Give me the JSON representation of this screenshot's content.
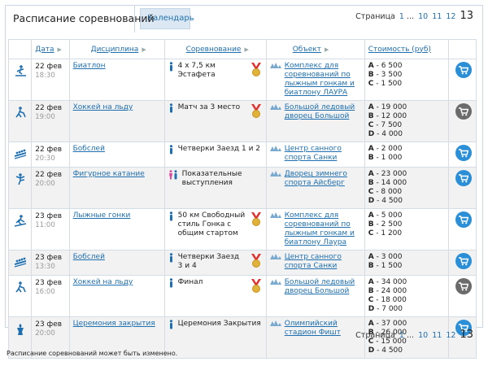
{
  "tabs": {
    "schedule": "Расписание соревнований",
    "calendar": "Календарь"
  },
  "pager": {
    "label": "Страница",
    "ellipsis": "...",
    "pages": [
      "1",
      "10",
      "11",
      "12"
    ],
    "current": "13"
  },
  "table": {
    "headers": {
      "date": "Дата",
      "discipline": "Дисциплина",
      "event": "Соревнование",
      "venue": "Объект",
      "price": "Стоимость (руб)"
    },
    "rows": [
      {
        "date": "22 фев",
        "time": "18:30",
        "discipline": "Биатлон",
        "event": "4 x 7,5 км Эстафета",
        "medal": true,
        "venue": "Комплекс для соревнований по лыжным гонкам и биатлону ЛАУРА",
        "prices": [
          [
            "A",
            "6 500"
          ],
          [
            "B",
            "3 500"
          ],
          [
            "C",
            "1 500"
          ]
        ],
        "cart": "blue",
        "sport_icon": "biathlon-icon"
      },
      {
        "date": "22 фев",
        "time": "19:00",
        "discipline": "Хоккей на льду",
        "event": "Матч за 3 место",
        "medal": true,
        "venue": "Большой ледовый дворец Большой",
        "prices": [
          [
            "A",
            "19 000"
          ],
          [
            "B",
            "12 000"
          ],
          [
            "C",
            "7 500"
          ],
          [
            "D",
            "4 000"
          ]
        ],
        "cart": "grey",
        "sport_icon": "hockey-icon"
      },
      {
        "date": "22 фев",
        "time": "20:30",
        "discipline": "Бобслей",
        "event": "Четверки Заезд 1 и 2",
        "medal": false,
        "venue": "Центр санного спорта Санки",
        "prices": [
          [
            "A",
            "2 000"
          ],
          [
            "B",
            "1 000"
          ]
        ],
        "cart": "blue",
        "sport_icon": "bobsleigh-icon"
      },
      {
        "date": "22 фев",
        "time": "20:00",
        "discipline": "Фигурное катание",
        "event": "Показательные выступления",
        "medal": false,
        "venue": "Дворец зимнего спорта Айсберг",
        "prices": [
          [
            "A",
            "23 000"
          ],
          [
            "B",
            "14 000"
          ],
          [
            "C",
            "8 000"
          ],
          [
            "D",
            "4 500"
          ]
        ],
        "cart": "blue",
        "sport_icon": "figure-skating-icon"
      },
      {
        "date": "23 фев",
        "time": "11:00",
        "discipline": "Лыжные гонки",
        "event": "50 км Свободный стиль Гонка с общим стартом",
        "medal": true,
        "venue": "Комплекс для соревнований по лыжным гонкам и биатлону Лаура",
        "prices": [
          [
            "A",
            "5 000"
          ],
          [
            "B",
            "2 500"
          ],
          [
            "C",
            "1 200"
          ]
        ],
        "cart": "blue",
        "sport_icon": "cross-country-icon"
      },
      {
        "date": "23 фев",
        "time": "13:30",
        "discipline": "Бобслей",
        "event": "Четверки Заезд 3 и 4",
        "medal": true,
        "venue": "Центр санного спорта Санки",
        "prices": [
          [
            "A",
            "3 000"
          ],
          [
            "B",
            "1 500"
          ]
        ],
        "cart": "blue",
        "sport_icon": "bobsleigh-icon"
      },
      {
        "date": "23 фев",
        "time": "16:00",
        "discipline": "Хоккей на льду",
        "event": "Финал",
        "medal": true,
        "venue": "Большой ледовый дворец Большой",
        "prices": [
          [
            "A",
            "34 000"
          ],
          [
            "B",
            "24 000"
          ],
          [
            "C",
            "18 000"
          ],
          [
            "D",
            "7 000"
          ]
        ],
        "cart": "grey",
        "sport_icon": "hockey-icon"
      },
      {
        "date": "23 фев",
        "time": "20:00",
        "discipline": "Церемония закрытия",
        "event": "Церемония Закрытия",
        "medal": false,
        "venue": "Олимпийский стадион Фишт",
        "prices": [
          [
            "A",
            "37 000"
          ],
          [
            "B",
            "26 000"
          ],
          [
            "C",
            "15 000"
          ],
          [
            "D",
            "4 500"
          ]
        ],
        "cart": "blue",
        "sport_icon": "ceremony-icon"
      }
    ]
  },
  "footer_note": "Расписание соревнований может быть изменено.",
  "colors": {
    "link": "#1e6fb0",
    "cart_blue": "#2a8fd6",
    "cart_grey": "#6b6b6b",
    "medal": "#e0322f"
  }
}
